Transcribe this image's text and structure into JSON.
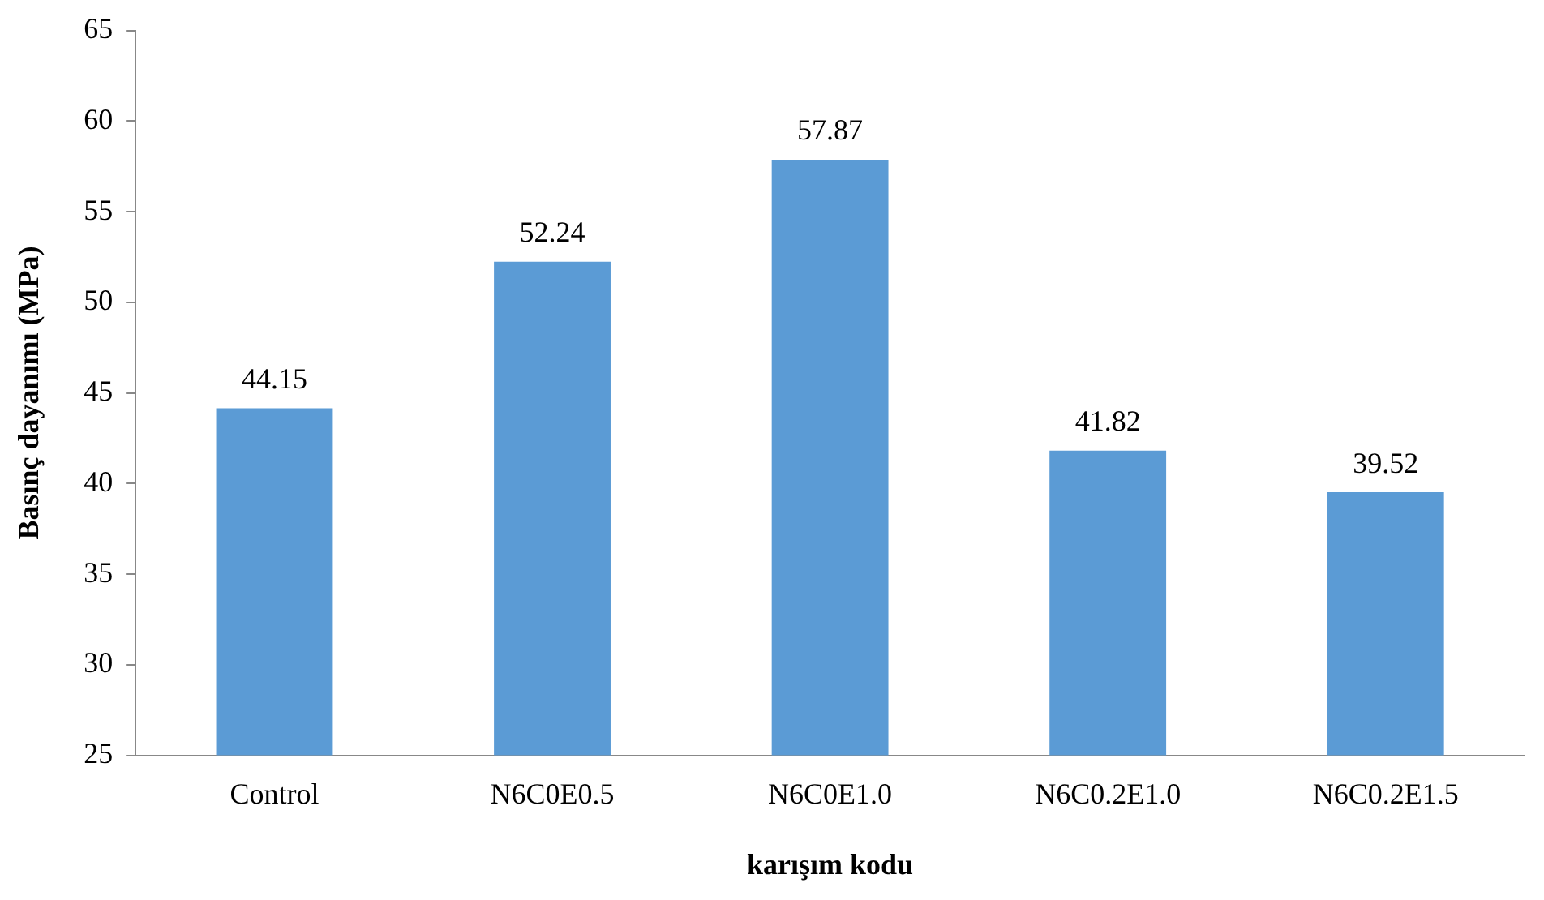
{
  "chart_data": {
    "type": "bar",
    "xlabel": "karışım kodu",
    "ylabel": "Basınç dayanımı (MPa)",
    "categories": [
      "Control",
      "N6C0E0.5",
      "N6C0E1.0",
      "N6C0.2E1.0",
      "N6C0.2E1.5"
    ],
    "values": [
      44.15,
      52.24,
      57.87,
      41.82,
      39.52
    ],
    "color": "#5b9bd5",
    "ylim": [
      25,
      65
    ],
    "yticks": [
      25,
      30,
      35,
      40,
      45,
      50,
      55,
      60,
      65
    ],
    "grid": false,
    "legend": false,
    "data_labels": true
  }
}
